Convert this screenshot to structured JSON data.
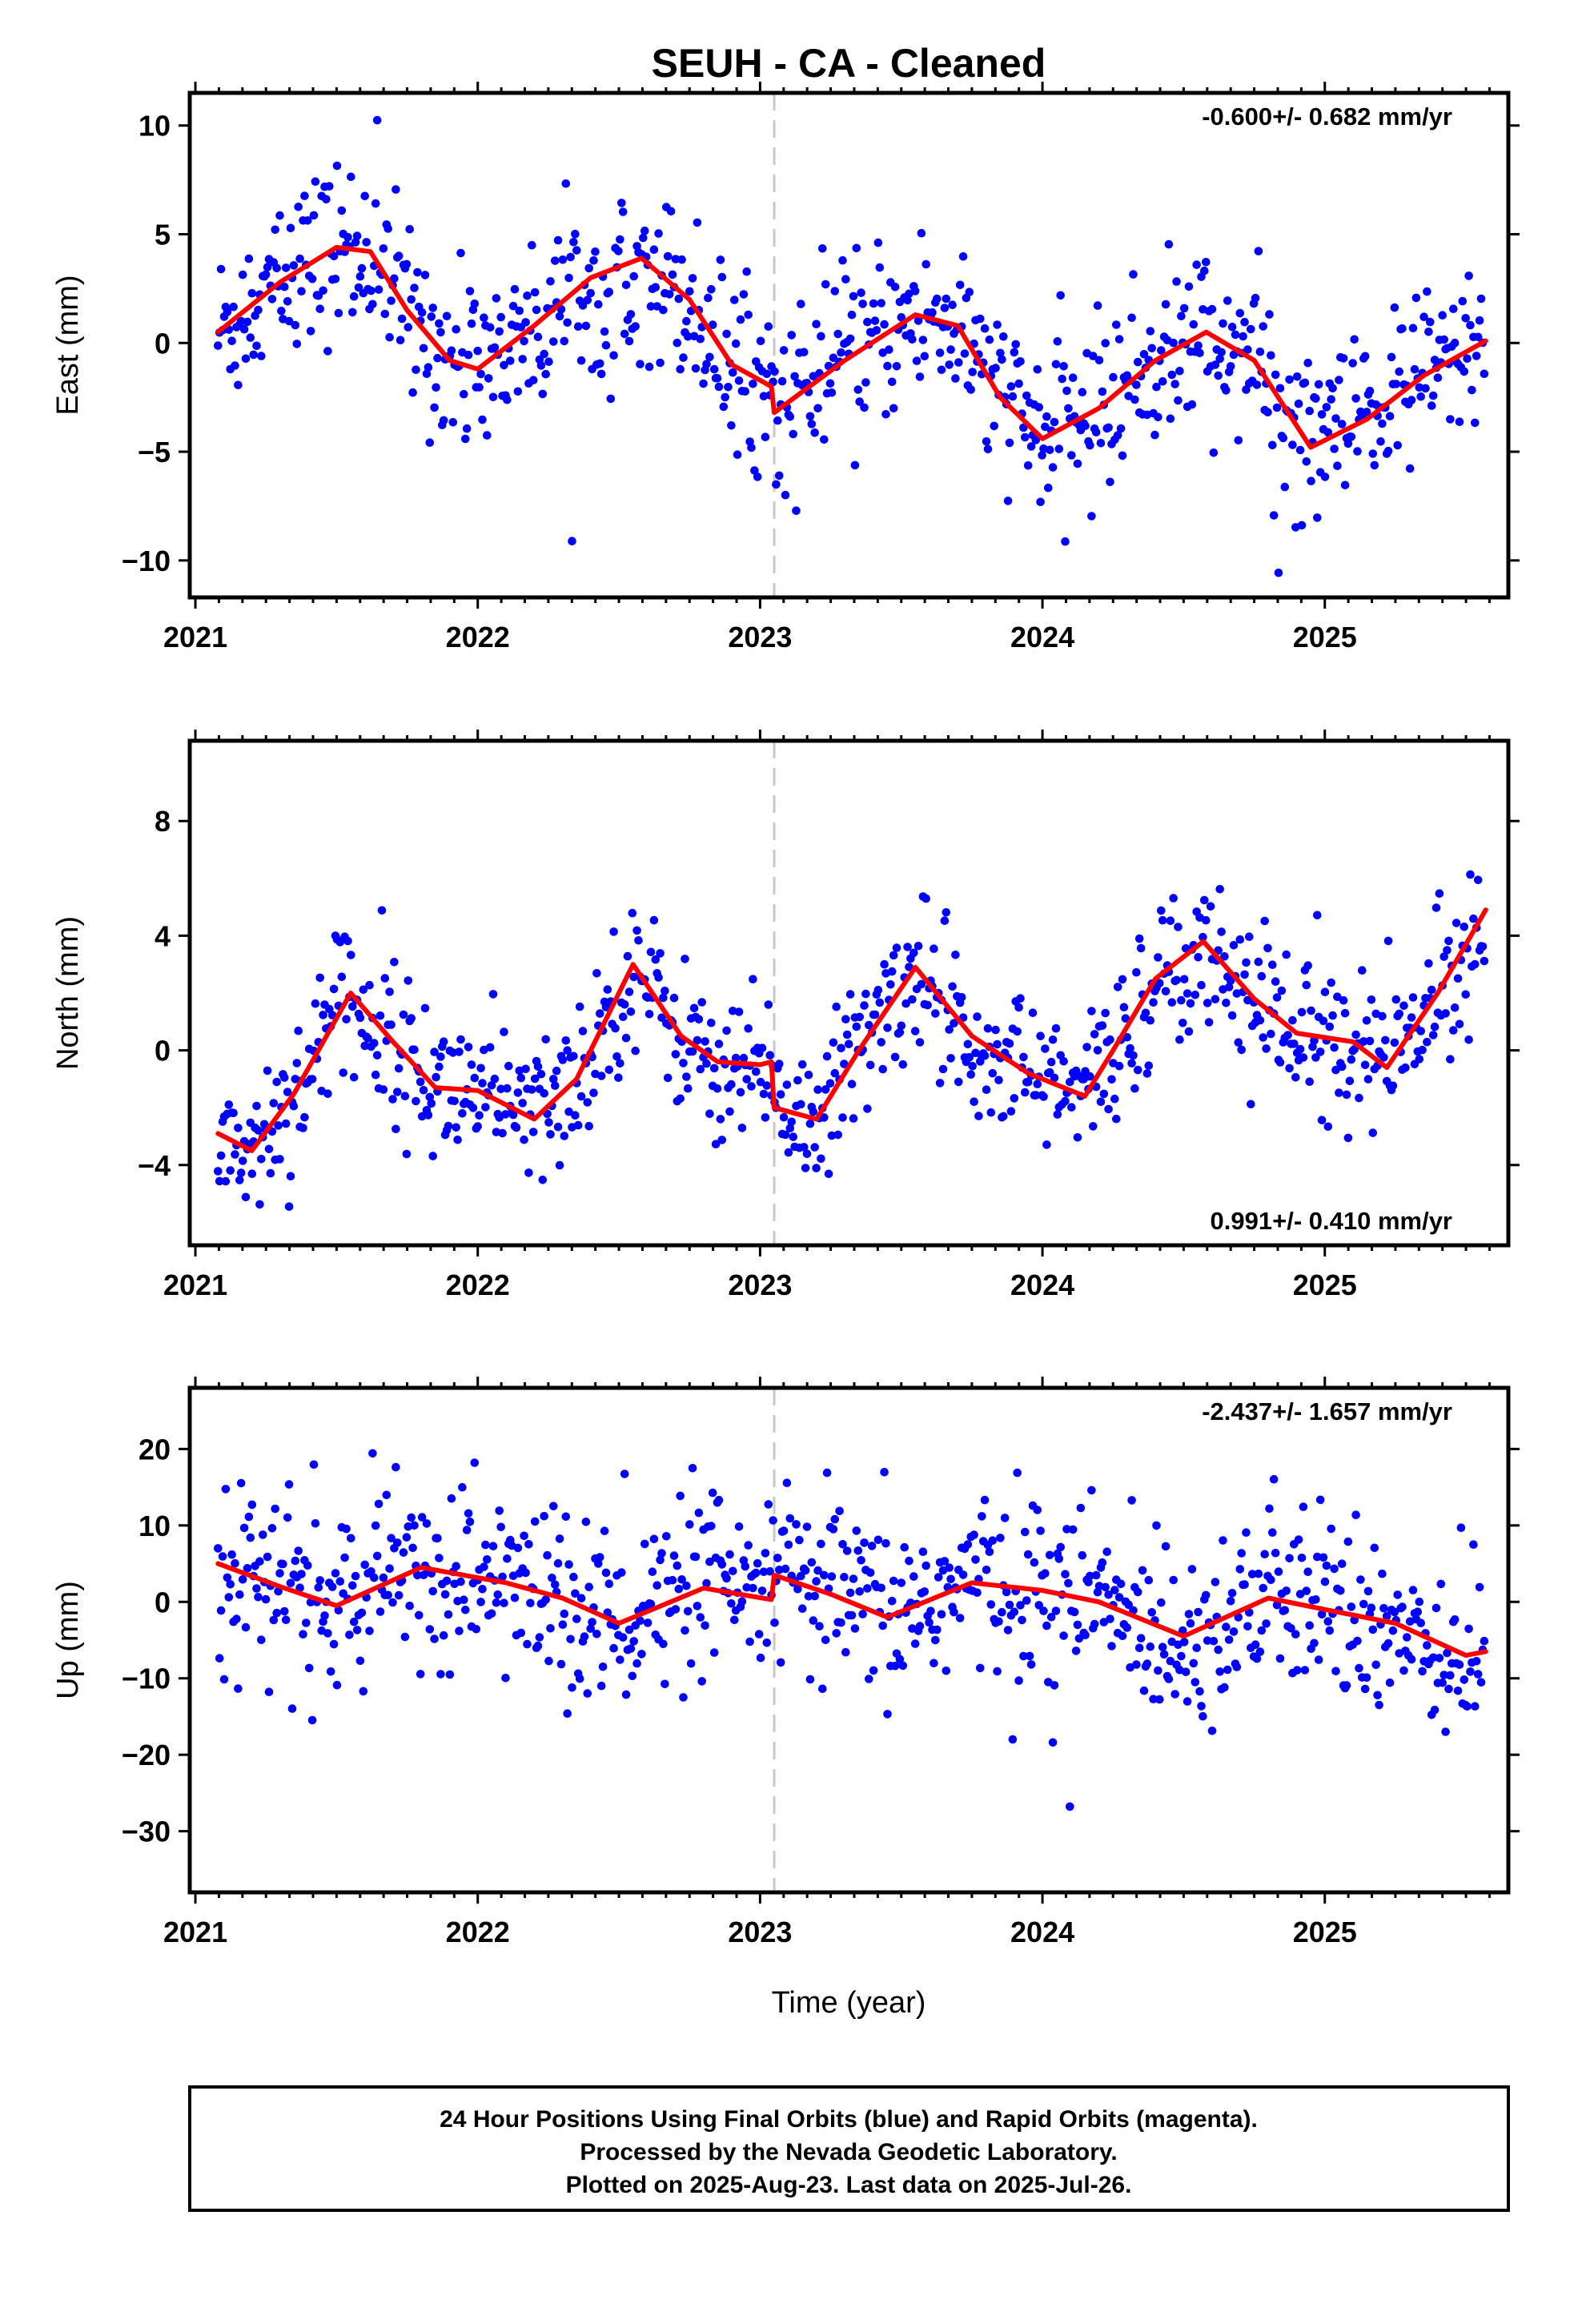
{
  "title": "SEUH  - CA - Cleaned",
  "xlabel": "Time (year)",
  "footer": {
    "line1": "24 Hour Positions Using Final Orbits (blue) and Rapid Orbits (magenta).",
    "line2": "Processed by the Nevada Geodetic Laboratory.",
    "line3": "Plotted on 2025-Aug-23. Last data on 2025-Jul-26."
  },
  "colors": {
    "points": "#0000ff",
    "fit": "#ff0000",
    "event_line": "#c8c8c8",
    "frame": "#000000"
  },
  "chart_data": [
    {
      "type": "scatter",
      "component": "east",
      "ylabel": "East (mm)",
      "rate_label": "-0.600+/- 0.682 mm/yr",
      "rate_position": "top-right",
      "xlim": [
        2020.98,
        2025.65
      ],
      "ylim": [
        -11.7,
        11.5
      ],
      "x_ticks": [
        2021,
        2022,
        2023,
        2024,
        2025
      ],
      "x_tick_labels": [
        "2021",
        "2022",
        "2023",
        "2024",
        "2025"
      ],
      "y_ticks": [
        -10,
        -5,
        0,
        5,
        10
      ],
      "y_tick_labels": [
        "−10",
        "−5",
        "0",
        "5",
        "10"
      ],
      "event_line_x": 2023.05,
      "data_span": [
        2021.08,
        2025.57
      ],
      "scatter_sd_mm": 2.0,
      "grid": false,
      "fit_curve": {
        "x": [
          2021.08,
          2021.3,
          2021.5,
          2021.62,
          2021.75,
          2021.9,
          2022.0,
          2022.2,
          2022.4,
          2022.58,
          2022.75,
          2022.9,
          2023.04,
          2023.05,
          2023.3,
          2023.55,
          2023.7,
          2023.85,
          2024.0,
          2024.2,
          2024.4,
          2024.58,
          2024.75,
          2024.95,
          2025.15,
          2025.35,
          2025.57
        ],
        "y": [
          0.5,
          2.8,
          4.4,
          4.2,
          1.5,
          -0.8,
          -1.2,
          0.8,
          3.0,
          3.9,
          2.0,
          -1.0,
          -2.0,
          -3.2,
          -0.8,
          1.3,
          0.8,
          -2.5,
          -4.4,
          -3.0,
          -0.8,
          0.5,
          -0.8,
          -4.8,
          -3.5,
          -1.5,
          0.1
        ]
      }
    },
    {
      "type": "scatter",
      "component": "north",
      "ylabel": "North (mm)",
      "rate_label": "0.991+/- 0.410 mm/yr",
      "rate_position": "bottom-right",
      "xlim": [
        2020.98,
        2025.65
      ],
      "ylim": [
        -6.8,
        10.8
      ],
      "x_ticks": [
        2021,
        2022,
        2023,
        2024,
        2025
      ],
      "x_tick_labels": [
        "2021",
        "2022",
        "2023",
        "2024",
        "2025"
      ],
      "y_ticks": [
        -4,
        0,
        4,
        8
      ],
      "y_tick_labels": [
        "−4",
        "0",
        "4",
        "8"
      ],
      "event_line_x": 2023.05,
      "data_span": [
        2021.08,
        2025.57
      ],
      "scatter_sd_mm": 1.3,
      "grid": false,
      "fit_curve": {
        "x": [
          2021.08,
          2021.2,
          2021.35,
          2021.55,
          2021.7,
          2021.85,
          2022.0,
          2022.2,
          2022.35,
          2022.55,
          2022.72,
          2022.85,
          2023.0,
          2023.04,
          2023.05,
          2023.2,
          2023.35,
          2023.55,
          2023.75,
          2023.95,
          2024.15,
          2024.25,
          2024.4,
          2024.57,
          2024.75,
          2024.9,
          2025.1,
          2025.22,
          2025.4,
          2025.57
        ],
        "y": [
          -2.9,
          -3.5,
          -1.5,
          2.0,
          0.3,
          -1.3,
          -1.4,
          -2.4,
          -1.0,
          3.0,
          0.5,
          -0.4,
          -0.5,
          -0.4,
          -2.0,
          -2.4,
          0.0,
          2.9,
          0.5,
          -0.8,
          -1.6,
          0.0,
          2.5,
          3.8,
          1.8,
          0.6,
          0.3,
          -0.6,
          2.0,
          4.9
        ]
      }
    },
    {
      "type": "scatter",
      "component": "up",
      "ylabel": "Up (mm)",
      "rate_label": "-2.437+/- 1.657 mm/yr",
      "rate_position": "top-right",
      "xlim": [
        2020.98,
        2025.65
      ],
      "ylim": [
        -38,
        28
      ],
      "x_ticks": [
        2021,
        2022,
        2023,
        2024,
        2025
      ],
      "x_tick_labels": [
        "2021",
        "2022",
        "2023",
        "2024",
        "2025"
      ],
      "y_ticks": [
        -30,
        -20,
        -10,
        0,
        10,
        20
      ],
      "y_tick_labels": [
        "−30",
        "−20",
        "−10",
        "0",
        "10",
        "20"
      ],
      "event_line_x": 2023.05,
      "data_span": [
        2021.08,
        2025.57
      ],
      "scatter_sd_mm": 6.0,
      "grid": false,
      "fit_curve": {
        "x": [
          2021.08,
          2021.3,
          2021.5,
          2021.8,
          2022.1,
          2022.3,
          2022.5,
          2022.8,
          2023.04,
          2023.05,
          2023.25,
          2023.45,
          2023.75,
          2024.0,
          2024.2,
          2024.5,
          2024.8,
          2025.0,
          2025.25,
          2025.5,
          2025.57
        ],
        "y": [
          5.0,
          2.0,
          -0.5,
          4.5,
          2.5,
          0.5,
          -2.8,
          1.8,
          0.3,
          3.5,
          1.0,
          -2.0,
          2.5,
          1.5,
          0.0,
          -4.5,
          0.5,
          -1.0,
          -2.8,
          -7.0,
          -6.5
        ]
      }
    }
  ]
}
